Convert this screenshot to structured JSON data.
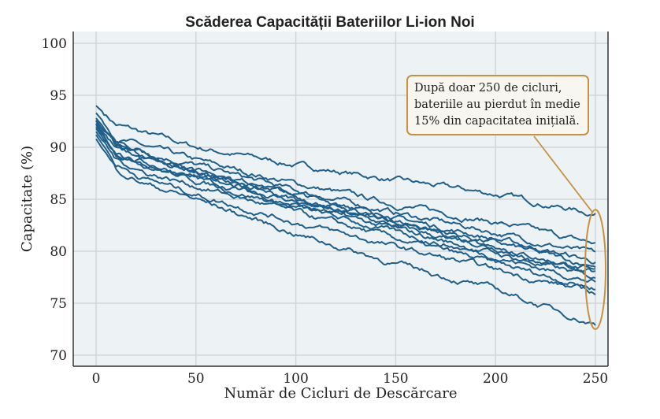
{
  "chart_data": {
    "type": "line",
    "title": "Scăderea Capacității Bateriilor Li-ion Noi",
    "xlabel": "Număr de Cicluri de Descărcare",
    "ylabel": "Capacitate (%)",
    "xlim": [
      -12,
      262
    ],
    "ylim": [
      70,
      100
    ],
    "xticks": [
      0,
      50,
      100,
      150,
      200,
      250
    ],
    "yticks": [
      70,
      75,
      80,
      85,
      90,
      95,
      100
    ],
    "grid": true,
    "line_color": "#1f5f8b",
    "annotation_color": "#c8913f",
    "x": [
      0,
      10,
      25,
      50,
      100,
      150,
      200,
      250
    ],
    "series": [
      {
        "values": [
          94.0,
          92.2,
          91.3,
          90.0,
          88.3,
          86.8,
          85.5,
          83.6
        ]
      },
      {
        "values": [
          93.3,
          91.0,
          90.0,
          88.7,
          86.5,
          84.5,
          82.8,
          80.7
        ]
      },
      {
        "values": [
          92.8,
          90.5,
          89.6,
          88.3,
          85.8,
          83.7,
          81.8,
          79.7
        ]
      },
      {
        "values": [
          92.5,
          90.2,
          89.2,
          88.0,
          85.5,
          83.2,
          81.2,
          79.0
        ]
      },
      {
        "values": [
          92.6,
          90.0,
          89.0,
          87.7,
          85.2,
          82.9,
          80.8,
          78.5
        ]
      },
      {
        "values": [
          92.3,
          89.8,
          88.8,
          87.5,
          85.0,
          82.6,
          80.4,
          78.1
        ]
      },
      {
        "values": [
          92.0,
          89.5,
          88.5,
          87.2,
          84.8,
          82.4,
          80.1,
          77.8
        ]
      },
      {
        "values": [
          91.8,
          89.2,
          88.2,
          87.0,
          84.5,
          82.1,
          79.8,
          77.4
        ]
      },
      {
        "values": [
          92.2,
          89.6,
          88.4,
          86.8,
          84.2,
          81.8,
          79.5,
          77.0
        ]
      },
      {
        "values": [
          91.5,
          88.8,
          87.6,
          86.3,
          83.7,
          81.2,
          78.8,
          76.5
        ]
      },
      {
        "values": [
          91.2,
          88.3,
          87.0,
          85.5,
          82.8,
          80.4,
          78.2,
          76.0
        ]
      },
      {
        "values": [
          90.8,
          87.8,
          86.5,
          85.0,
          81.7,
          78.8,
          76.3,
          73.0
        ]
      }
    ],
    "annotation": {
      "text": "După doar 250 de cicluri, bateriile au pierdut în medie 15% din capacitatea inițială.",
      "target_x": 250,
      "target_y_range": [
        72.5,
        84
      ]
    }
  }
}
